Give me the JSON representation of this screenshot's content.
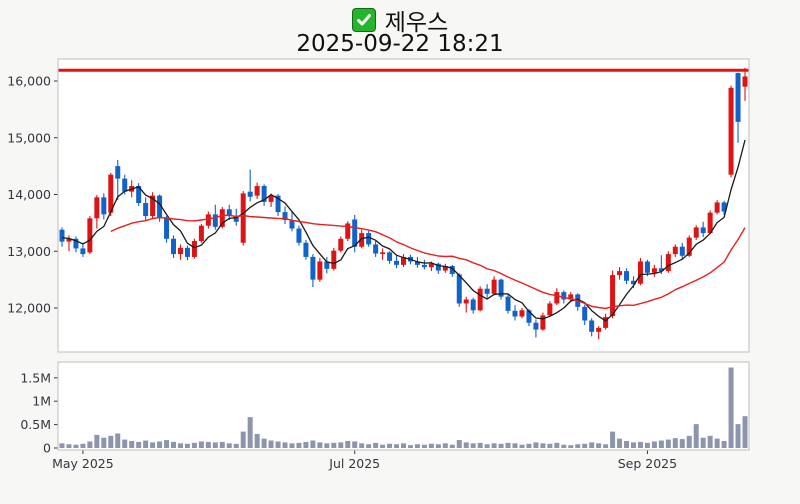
{
  "title": {
    "icon": "checkbox-check-icon",
    "symbol": "제우스",
    "timestamp": "2025-09-22 18:21"
  },
  "colors": {
    "up": "#dc1413",
    "down": "#1263c9",
    "volume_bar": "#8d95ae",
    "ma_short": "#1a1a1a",
    "ma_long": "#e8201f",
    "resistance": "#e8100f",
    "axis_border": "#c9c9c9",
    "tick_text": "#36363f",
    "pane_bg": "#ffffff",
    "figure_bg": "#f7f7f5",
    "check_green": "#24b52b"
  },
  "chart_data": {
    "type": "candlestick+volume",
    "title": "제우스",
    "subtitle": "2025-09-22 18:21",
    "price_axis": {
      "ticks": [
        16000,
        15000,
        14000,
        13000,
        12000
      ],
      "labels": [
        "16,000",
        "15,000",
        "14,000",
        "13,000",
        "12,000"
      ],
      "range": [
        11350,
        16400
      ]
    },
    "volume_axis": {
      "ticks_m": [
        1.5,
        1.0,
        0.5,
        0
      ],
      "labels": [
        "1.5M",
        "1M",
        "0.5M",
        "0"
      ],
      "range_m": [
        0,
        1.84
      ]
    },
    "x_axis": {
      "tick_indices": [
        3,
        42,
        84
      ],
      "tick_labels": [
        "May 2025",
        "Jul 2025",
        "Sep 2025"
      ]
    },
    "resistance_line": 16190,
    "ma_short_window": 5,
    "ma_long_window": 20,
    "ma_short_seed": [
      13300,
      13250,
      13220,
      13260
    ],
    "ma_long_seed": [
      13150,
      13200,
      13250,
      13300,
      13280,
      13220,
      13260,
      13300,
      13340,
      13300,
      13260,
      13220
    ],
    "candles_note": "each row = [open, high, low, close, volume_millions]",
    "candles": [
      [
        13380,
        13420,
        13080,
        13170,
        0.1
      ],
      [
        13170,
        13280,
        13000,
        13220,
        0.08
      ],
      [
        13220,
        13260,
        12980,
        13050,
        0.07
      ],
      [
        13050,
        13150,
        12900,
        12950,
        0.09
      ],
      [
        12980,
        13620,
        12950,
        13580,
        0.14
      ],
      [
        13580,
        13990,
        13400,
        13950,
        0.28
      ],
      [
        13950,
        14020,
        13560,
        13650,
        0.22
      ],
      [
        13680,
        14380,
        13620,
        14350,
        0.26
      ],
      [
        14500,
        14610,
        13900,
        14280,
        0.31
      ],
      [
        14280,
        14350,
        14000,
        14050,
        0.18
      ],
      [
        14050,
        14250,
        13950,
        14150,
        0.15
      ],
      [
        14150,
        14200,
        13800,
        13850,
        0.13
      ],
      [
        13850,
        13950,
        13550,
        13620,
        0.16
      ],
      [
        13620,
        14040,
        13580,
        13980,
        0.12
      ],
      [
        13980,
        14000,
        13520,
        13580,
        0.14
      ],
      [
        13580,
        13620,
        13150,
        13220,
        0.17
      ],
      [
        13220,
        13280,
        12880,
        12950,
        0.13
      ],
      [
        12950,
        13120,
        12850,
        13060,
        0.1
      ],
      [
        13060,
        13100,
        12840,
        12900,
        0.09
      ],
      [
        12900,
        13220,
        12870,
        13180,
        0.11
      ],
      [
        13180,
        13480,
        13150,
        13450,
        0.14
      ],
      [
        13450,
        13700,
        13400,
        13650,
        0.13
      ],
      [
        13650,
        13820,
        13380,
        13430,
        0.12
      ],
      [
        13430,
        13780,
        13400,
        13740,
        0.13
      ],
      [
        13740,
        13820,
        13550,
        13620,
        0.1
      ],
      [
        13620,
        13750,
        13450,
        13520,
        0.09
      ],
      [
        13150,
        14060,
        13100,
        14020,
        0.35
      ],
      [
        14050,
        14440,
        13880,
        13960,
        0.66
      ],
      [
        13980,
        14210,
        13920,
        14150,
        0.3
      ],
      [
        14150,
        14180,
        13800,
        13870,
        0.2
      ],
      [
        13870,
        14020,
        13780,
        13980,
        0.16
      ],
      [
        13980,
        14010,
        13620,
        13690,
        0.14
      ],
      [
        13690,
        13790,
        13480,
        13550,
        0.12
      ],
      [
        13550,
        13700,
        13350,
        13400,
        0.1
      ],
      [
        13400,
        13450,
        13100,
        13150,
        0.11
      ],
      [
        13150,
        13200,
        12850,
        12900,
        0.13
      ],
      [
        12900,
        12950,
        12370,
        12500,
        0.16
      ],
      [
        12500,
        12880,
        12460,
        12820,
        0.12
      ],
      [
        12820,
        12900,
        12610,
        12690,
        0.1
      ],
      [
        12690,
        13060,
        12660,
        13010,
        0.11
      ],
      [
        13010,
        13260,
        12980,
        13220,
        0.12
      ],
      [
        13220,
        13530,
        13180,
        13490,
        0.15
      ],
      [
        13560,
        13640,
        12980,
        13080,
        0.14
      ],
      [
        13080,
        13380,
        13050,
        13320,
        0.1
      ],
      [
        13320,
        13360,
        13080,
        13120,
        0.08
      ],
      [
        13120,
        13180,
        12900,
        12960,
        0.11
      ],
      [
        12960,
        13050,
        12850,
        12980,
        0.07
      ],
      [
        12980,
        13000,
        12780,
        12830,
        0.09
      ],
      [
        12830,
        12940,
        12700,
        12760,
        0.08
      ],
      [
        12760,
        12950,
        12720,
        12900,
        0.1
      ],
      [
        12900,
        12940,
        12770,
        12820,
        0.06
      ],
      [
        12820,
        12900,
        12710,
        12760,
        0.08
      ],
      [
        12760,
        12850,
        12680,
        12720,
        0.07
      ],
      [
        12720,
        12820,
        12650,
        12780,
        0.09
      ],
      [
        12780,
        12800,
        12600,
        12660,
        0.08
      ],
      [
        12660,
        12780,
        12620,
        12740,
        0.1
      ],
      [
        12740,
        12760,
        12550,
        12600,
        0.07
      ],
      [
        12590,
        12610,
        12020,
        12080,
        0.17
      ],
      [
        12080,
        12200,
        11920,
        12150,
        0.12
      ],
      [
        12150,
        12180,
        11900,
        11960,
        0.1
      ],
      [
        11960,
        12380,
        11940,
        12340,
        0.11
      ],
      [
        12340,
        12420,
        12180,
        12250,
        0.08
      ],
      [
        12250,
        12560,
        12220,
        12500,
        0.1
      ],
      [
        12500,
        12520,
        12150,
        12200,
        0.09
      ],
      [
        12200,
        12250,
        11900,
        11950,
        0.11
      ],
      [
        11950,
        12050,
        11780,
        11850,
        0.1
      ],
      [
        11850,
        12000,
        11820,
        11960,
        0.07
      ],
      [
        11960,
        11980,
        11680,
        11740,
        0.09
      ],
      [
        11740,
        11800,
        11480,
        11620,
        0.12
      ],
      [
        11620,
        11920,
        11600,
        11870,
        0.1
      ],
      [
        11870,
        12120,
        11850,
        12080,
        0.09
      ],
      [
        12080,
        12350,
        12050,
        12280,
        0.11
      ],
      [
        12280,
        12310,
        12080,
        12150,
        0.07
      ],
      [
        12150,
        12280,
        12100,
        12240,
        0.06
      ],
      [
        12240,
        12260,
        11950,
        12020,
        0.08
      ],
      [
        12020,
        12060,
        11700,
        11780,
        0.09
      ],
      [
        11780,
        11820,
        11500,
        11580,
        0.12
      ],
      [
        11580,
        11680,
        11450,
        11650,
        0.1
      ],
      [
        11650,
        11900,
        11620,
        11840,
        0.08
      ],
      [
        11860,
        12660,
        11820,
        12580,
        0.35
      ],
      [
        12580,
        12720,
        12500,
        12650,
        0.2
      ],
      [
        12650,
        12700,
        12420,
        12480,
        0.15
      ],
      [
        12480,
        12560,
        12350,
        12420,
        0.12
      ],
      [
        12430,
        12880,
        12400,
        12820,
        0.13
      ],
      [
        12820,
        12850,
        12560,
        12620,
        0.11
      ],
      [
        12620,
        12760,
        12550,
        12700,
        0.14
      ],
      [
        12700,
        12930,
        12600,
        12650,
        0.16
      ],
      [
        12650,
        13000,
        12620,
        12950,
        0.18
      ],
      [
        12950,
        13120,
        12900,
        13080,
        0.21
      ],
      [
        13080,
        13150,
        12850,
        12920,
        0.19
      ],
      [
        12920,
        13280,
        12900,
        13240,
        0.26
      ],
      [
        13240,
        13460,
        13200,
        13420,
        0.51
      ],
      [
        13420,
        13520,
        13250,
        13320,
        0.22
      ],
      [
        13320,
        13720,
        13300,
        13680,
        0.26
      ],
      [
        13680,
        13900,
        13650,
        13860,
        0.2
      ],
      [
        13860,
        13890,
        13640,
        13700,
        0.15
      ],
      [
        14350,
        15920,
        14300,
        15880,
        1.72
      ],
      [
        16140,
        16150,
        14910,
        15280,
        0.51
      ],
      [
        15900,
        16230,
        15650,
        16080,
        0.68
      ]
    ]
  }
}
